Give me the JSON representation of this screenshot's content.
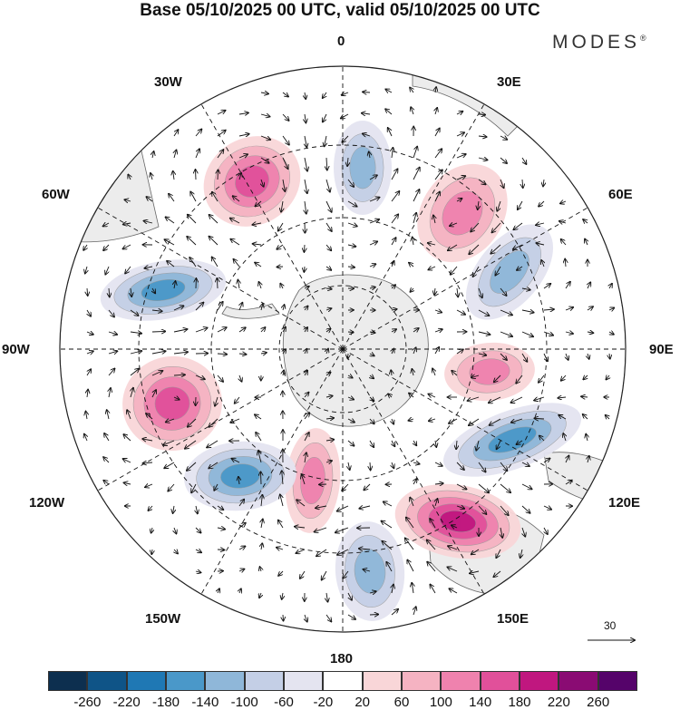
{
  "title": "Base 05/10/2025 00 UTC, valid 05/10/2025 00 UTC",
  "brand": {
    "name": "MODES",
    "mark": "®"
  },
  "longitude_labels": {
    "lon_0": "0",
    "lon_30e": "30E",
    "lon_60e": "60E",
    "lon_90e": "90E",
    "lon_120e": "120E",
    "lon_150e": "150E",
    "lon_180": "180",
    "lon_150w": "150W",
    "lon_120w": "120W",
    "lon_90w": "90W",
    "lon_60w": "60W",
    "lon_30w": "30W"
  },
  "reference_vector": {
    "value": "30"
  },
  "colorbar": {
    "ticks": [
      "-260",
      "-220",
      "-180",
      "-140",
      "-100",
      "-60",
      "-20",
      "20",
      "60",
      "100",
      "140",
      "180",
      "220",
      "260"
    ],
    "colors": [
      "#0d2f4f",
      "#0f5487",
      "#1f78b4",
      "#4a98c9",
      "#8fb7d9",
      "#c4cfe6",
      "#e4e4f0",
      "#ffffff",
      "#f9d6d8",
      "#f5b3c2",
      "#ef82ae",
      "#e1509a",
      "#c0177f",
      "#8a0b73",
      "#55036a"
    ]
  },
  "anomalies": [
    {
      "sign": "pos",
      "level": 4,
      "region": "30W-50S"
    },
    {
      "sign": "neg",
      "level": 3,
      "region": "0-45S"
    },
    {
      "sign": "pos",
      "level": 3,
      "region": "40E-45S"
    },
    {
      "sign": "neg",
      "level": 3,
      "region": "70E-45S"
    },
    {
      "sign": "pos",
      "level": 3,
      "region": "95E-50S"
    },
    {
      "sign": "neg",
      "level": 4,
      "region": "110E-45S"
    },
    {
      "sign": "pos",
      "level": 5,
      "region": "135E-45S"
    },
    {
      "sign": "neg",
      "level": 3,
      "region": "175E-50S"
    },
    {
      "sign": "pos",
      "level": 3,
      "region": "160W-50S"
    },
    {
      "sign": "neg",
      "level": 4,
      "region": "130W-45S"
    },
    {
      "sign": "pos",
      "level": 4,
      "region": "105W-45S"
    },
    {
      "sign": "neg",
      "level": 4,
      "region": "75W-50S"
    }
  ]
}
